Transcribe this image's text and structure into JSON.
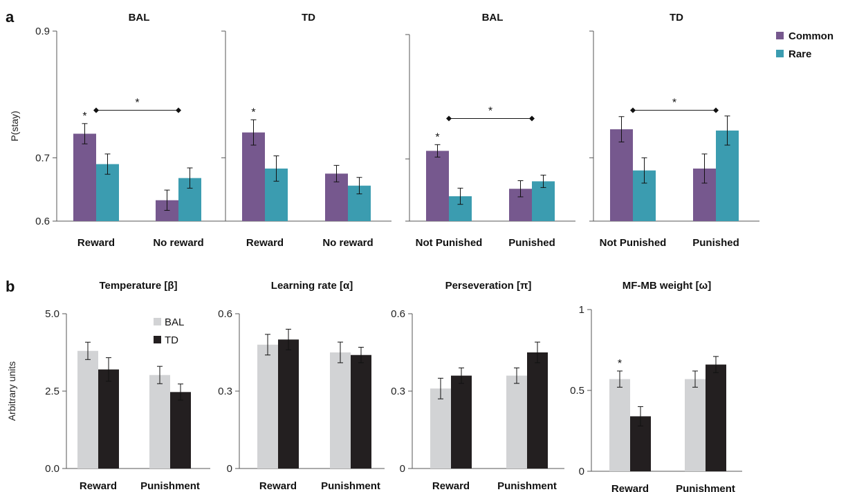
{
  "figure": {
    "label_a": "a",
    "label_b": "b"
  },
  "chart_data": [
    {
      "type": "bar",
      "title": "BAL",
      "ylabel": "P(stay)",
      "categories": [
        "Reward",
        "No reward"
      ],
      "yticks": [
        "0.6",
        "0.7",
        "0.9"
      ],
      "ytick_values": [
        0.6,
        0.7,
        0.9
      ],
      "ylim": [
        0.6,
        0.9
      ],
      "series": [
        {
          "name": "Common",
          "values": [
            0.738,
            0.633
          ],
          "err": [
            0.016,
            0.016
          ]
        },
        {
          "name": "Rare",
          "values": [
            0.69,
            0.668
          ],
          "err": [
            0.016,
            0.016
          ]
        }
      ],
      "significance": [
        {
          "label": "*",
          "type": "bar",
          "category": 0,
          "series": 0
        },
        {
          "label": "*",
          "type": "bracket",
          "between": [
            0,
            1
          ],
          "y": 0.775
        }
      ]
    },
    {
      "type": "bar",
      "title": "TD",
      "categories": [
        "Reward",
        "No reward"
      ],
      "ylim": [
        0.6,
        0.9
      ],
      "ytick_values": [
        0.6,
        0.7,
        0.9
      ],
      "series": [
        {
          "name": "Common",
          "values": [
            0.74,
            0.675
          ],
          "err": [
            0.02,
            0.013
          ]
        },
        {
          "name": "Rare",
          "values": [
            0.683,
            0.656
          ],
          "err": [
            0.02,
            0.013
          ]
        }
      ],
      "significance": [
        {
          "label": "*",
          "type": "bar",
          "category": 0,
          "series": 0
        }
      ]
    },
    {
      "type": "bar",
      "title": "BAL",
      "categories": [
        "Not Punished",
        "Punished"
      ],
      "ylim": [
        0.6,
        0.9
      ],
      "ytick_values": [
        0.6,
        0.7,
        0.9
      ],
      "series": [
        {
          "name": "Common",
          "values": [
            0.713,
            0.652
          ],
          "err": [
            0.01,
            0.013
          ]
        },
        {
          "name": "Rare",
          "values": [
            0.64,
            0.664
          ],
          "err": [
            0.013,
            0.01
          ]
        }
      ],
      "significance": [
        {
          "label": "*",
          "type": "bar",
          "category": 0,
          "series": 0
        },
        {
          "label": "*",
          "type": "bracket",
          "between": [
            0,
            1
          ],
          "y": 0.765
        }
      ]
    },
    {
      "type": "bar",
      "title": "TD",
      "categories": [
        "Not Punished",
        "Punished"
      ],
      "ylim": [
        0.6,
        0.9
      ],
      "ytick_values": [
        0.6,
        0.7,
        0.9
      ],
      "series": [
        {
          "name": "Common",
          "values": [
            0.745,
            0.683
          ],
          "err": [
            0.02,
            0.023
          ]
        },
        {
          "name": "Rare",
          "values": [
            0.68,
            0.743
          ],
          "err": [
            0.02,
            0.023
          ]
        }
      ],
      "significance": [
        {
          "label": "*",
          "type": "bracket",
          "between": [
            0,
            1
          ],
          "y": 0.775
        }
      ]
    },
    {
      "type": "bar",
      "title": "Temperature [β]",
      "ylabel": "Arbitrary units",
      "categories": [
        "Reward",
        "Punishment"
      ],
      "yticks": [
        "0.0",
        "2.5",
        "5.0"
      ],
      "ytick_values": [
        0,
        2.5,
        5.0
      ],
      "ylim": [
        0,
        5.0
      ],
      "series": [
        {
          "name": "BAL",
          "values": [
            3.8,
            3.02
          ],
          "err": [
            0.28,
            0.28
          ]
        },
        {
          "name": "TD",
          "values": [
            3.2,
            2.47
          ],
          "err": [
            0.38,
            0.26
          ]
        }
      ],
      "significance": []
    },
    {
      "type": "bar",
      "title": "Learning rate [α]",
      "categories": [
        "Reward",
        "Punishment"
      ],
      "yticks": [
        "0",
        "0.3",
        "0.6"
      ],
      "ytick_values": [
        0,
        0.3,
        0.6
      ],
      "ylim": [
        0,
        0.6
      ],
      "series": [
        {
          "name": "BAL",
          "values": [
            0.48,
            0.45
          ],
          "err": [
            0.04,
            0.04
          ]
        },
        {
          "name": "TD",
          "values": [
            0.5,
            0.44
          ],
          "err": [
            0.04,
            0.03
          ]
        }
      ],
      "significance": []
    },
    {
      "type": "bar",
      "title": "Perseveration [π]",
      "categories": [
        "Reward",
        "Punishment"
      ],
      "yticks": [
        "0",
        "0.3",
        "0.6"
      ],
      "ytick_values": [
        0,
        0.3,
        0.6
      ],
      "ylim": [
        0,
        0.6
      ],
      "series": [
        {
          "name": "BAL",
          "values": [
            0.31,
            0.36
          ],
          "err": [
            0.04,
            0.03
          ]
        },
        {
          "name": "TD",
          "values": [
            0.36,
            0.45
          ],
          "err": [
            0.03,
            0.04
          ]
        }
      ],
      "significance": []
    },
    {
      "type": "bar",
      "title": "MF-MB weight [ω]",
      "categories": [
        "Reward",
        "Punishment"
      ],
      "yticks": [
        "0",
        "0.5",
        "1"
      ],
      "ytick_values": [
        0,
        0.5,
        1
      ],
      "ylim": [
        0,
        1
      ],
      "series": [
        {
          "name": "BAL",
          "values": [
            0.57,
            0.57
          ],
          "err": [
            0.05,
            0.05
          ]
        },
        {
          "name": "TD",
          "values": [
            0.34,
            0.66
          ],
          "err": [
            0.06,
            0.05
          ]
        }
      ],
      "significance": [
        {
          "label": "*",
          "type": "bar",
          "category": 0,
          "series": 0
        }
      ]
    }
  ],
  "legend_a": [
    {
      "name": "Common",
      "color": "#76588e"
    },
    {
      "name": "Rare",
      "color": "#3b9cb0"
    }
  ],
  "legend_b": [
    {
      "name": "BAL",
      "color": "#d2d3d5"
    },
    {
      "name": "TD",
      "color": "#231f20"
    }
  ],
  "colors": {
    "common": "#76588e",
    "rare": "#3b9cb0",
    "bal": "#d2d3d5",
    "td": "#231f20"
  }
}
